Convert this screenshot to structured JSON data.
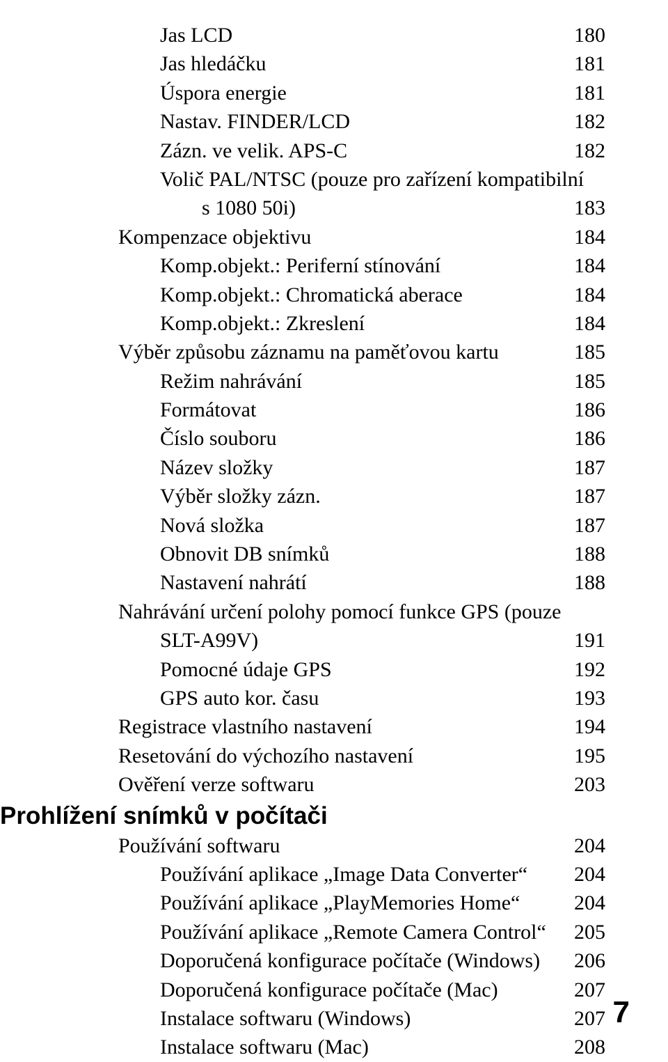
{
  "toc": {
    "entries": [
      {
        "label": "Jas LCD",
        "page": "180",
        "indent": 2
      },
      {
        "label": "Jas hledáčku",
        "page": "181",
        "indent": 2
      },
      {
        "label": "Úspora energie",
        "page": "181",
        "indent": 2
      },
      {
        "label": "Nastav. FINDER/LCD",
        "page": "182",
        "indent": 2
      },
      {
        "label": "Zázn. ve velik. APS-C",
        "page": "182",
        "indent": 2
      },
      {
        "label": "Volič PAL/NTSC (pouze pro zařízení kompatibilní",
        "page": null,
        "indent": 2
      },
      {
        "label": "s 1080 50i)",
        "page": "183",
        "indent": 3,
        "continuation": true
      },
      {
        "label": "Kompenzace objektivu",
        "page": "184",
        "indent": 1
      },
      {
        "label": "Komp.objekt.: Periferní stínování",
        "page": "184",
        "indent": 2
      },
      {
        "label": "Komp.objekt.: Chromatická aberace",
        "page": "184",
        "indent": 2
      },
      {
        "label": "Komp.objekt.: Zkreslení",
        "page": "184",
        "indent": 2
      },
      {
        "label": "Výběr způsobu záznamu na paměťovou kartu",
        "page": "185",
        "indent": 1
      },
      {
        "label": "Režim nahrávání",
        "page": "185",
        "indent": 2
      },
      {
        "label": "Formátovat",
        "page": "186",
        "indent": 2
      },
      {
        "label": "Číslo souboru",
        "page": "186",
        "indent": 2
      },
      {
        "label": "Název složky",
        "page": "187",
        "indent": 2
      },
      {
        "label": "Výběr složky zázn. ",
        "page": "187",
        "indent": 2
      },
      {
        "label": "Nová složka",
        "page": "187",
        "indent": 2
      },
      {
        "label": "Obnovit DB snímků",
        "page": "188",
        "indent": 2
      },
      {
        "label": "Nastavení nahrátí",
        "page": "188",
        "indent": 2
      },
      {
        "label": "Nahrávání určení polohy pomocí funkce GPS (pouze",
        "page": null,
        "indent": 1
      },
      {
        "label": "SLT-A99V)",
        "page": "191",
        "indent": 2,
        "continuation": true
      },
      {
        "label": "Pomocné údaje GPS",
        "page": "192",
        "indent": 2
      },
      {
        "label": "GPS auto kor. času",
        "page": "193",
        "indent": 2
      },
      {
        "label": "Registrace vlastního nastavení",
        "page": "194",
        "indent": 1
      },
      {
        "label": "Resetování do výchozího nastavení",
        "page": "195",
        "indent": 1
      },
      {
        "label": "Ověření verze softwaru",
        "page": "203",
        "indent": 1
      }
    ],
    "section_heading": "Prohlížení snímků v počítači",
    "entries2": [
      {
        "label": "Používání softwaru",
        "page": "204",
        "indent": 1
      },
      {
        "label": "Používání aplikace „Image Data Converter“",
        "page": "204",
        "indent": 2
      },
      {
        "label": "Používání aplikace „PlayMemories Home“",
        "page": "204",
        "indent": 2
      },
      {
        "label": "Používání aplikace „Remote Camera Control“",
        "page": "205",
        "indent": 2
      },
      {
        "label": "Doporučená konfigurace počítače (Windows)",
        "page": "206",
        "indent": 2
      },
      {
        "label": "Doporučená konfigurace počítače (Mac)",
        "page": "207",
        "indent": 2
      },
      {
        "label": "Instalace softwaru (Windows)",
        "page": "207",
        "indent": 2
      },
      {
        "label": "Instalace softwaru (Mac)",
        "page": "208",
        "indent": 2
      }
    ]
  },
  "page_number": "7"
}
